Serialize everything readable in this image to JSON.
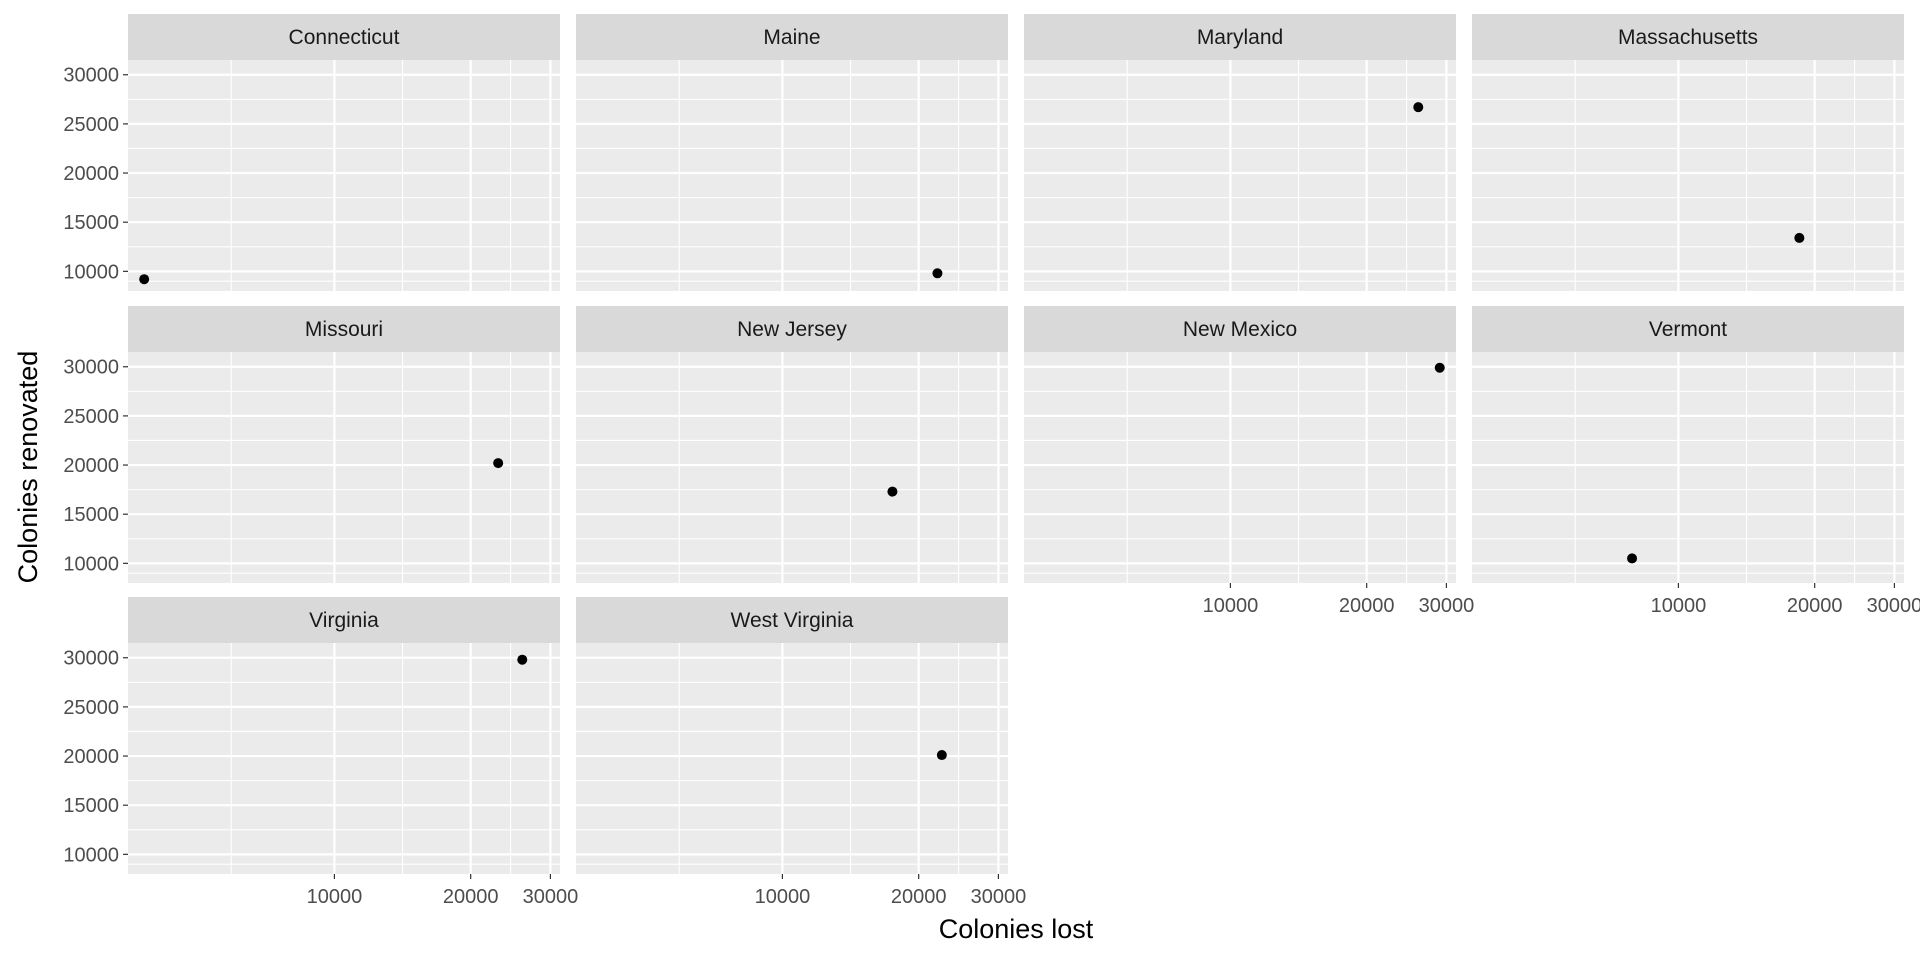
{
  "chart_data": {
    "type": "scatter",
    "xlabel": "Colonies lost",
    "ylabel": "Colonies renovated",
    "x_scale": "log10",
    "xlim": [
      3500,
      31500
    ],
    "ylim": [
      8000,
      31500
    ],
    "x_ticks": [
      10000,
      20000,
      30000
    ],
    "x_tick_labels": [
      "10000",
      "20000",
      "30000"
    ],
    "y_ticks": [
      10000,
      15000,
      20000,
      25000,
      30000
    ],
    "y_tick_labels": [
      "10000",
      "15000",
      "20000",
      "25000",
      "30000"
    ],
    "grid": true,
    "colors": {
      "panel_background": "#ebebeb",
      "strip_background": "#d9d9d9",
      "grid": "#ffffff",
      "point": "#000000",
      "tick_label": "#4d4d4d",
      "strip_text": "#1a1a1a",
      "axis_title": "#000000"
    },
    "facets": [
      {
        "label": "Connecticut",
        "points": [
          {
            "x": 3800,
            "y": 9200
          }
        ]
      },
      {
        "label": "Maine",
        "points": [
          {
            "x": 22000,
            "y": 9800
          }
        ]
      },
      {
        "label": "Maryland",
        "points": [
          {
            "x": 26000,
            "y": 26700
          }
        ]
      },
      {
        "label": "Massachusetts",
        "points": [
          {
            "x": 18500,
            "y": 13400
          }
        ]
      },
      {
        "label": "Missouri",
        "points": [
          {
            "x": 23000,
            "y": 20200
          }
        ]
      },
      {
        "label": "New Jersey",
        "points": [
          {
            "x": 17500,
            "y": 17300
          }
        ]
      },
      {
        "label": "New Mexico",
        "points": [
          {
            "x": 29000,
            "y": 29900
          }
        ]
      },
      {
        "label": "Vermont",
        "points": [
          {
            "x": 7900,
            "y": 10500
          }
        ]
      },
      {
        "label": "Virginia",
        "points": [
          {
            "x": 26000,
            "y": 29800
          }
        ]
      },
      {
        "label": "West Virginia",
        "points": [
          {
            "x": 22500,
            "y": 20100
          }
        ]
      }
    ]
  }
}
